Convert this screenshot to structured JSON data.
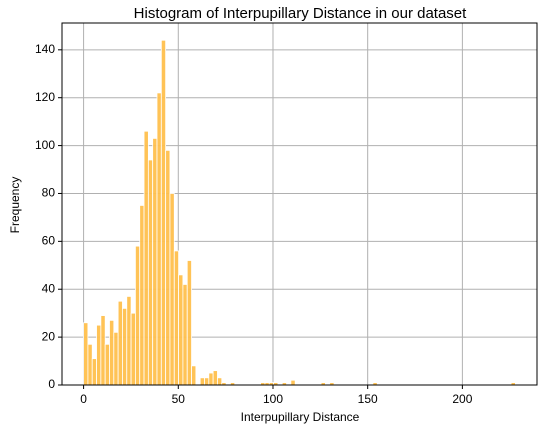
{
  "chart_data": {
    "type": "histogram",
    "title": "Histogram of Interpupillary Distance in our dataset",
    "xlabel": "Interpupillary Distance",
    "ylabel": "Frequency",
    "color": "#ffc04d",
    "grid": true,
    "bins": [
      0,
      2.28,
      4.56,
      6.84,
      9.12,
      11.4,
      13.68,
      15.96,
      18.24,
      20.52,
      22.8,
      25.08,
      27.36,
      29.64,
      31.92,
      34.2,
      36.48,
      38.76,
      41.04,
      43.32,
      45.6,
      47.88,
      50.16,
      52.44,
      54.72,
      57,
      59.28,
      61.56,
      63.84,
      66.12,
      68.4,
      70.68,
      72.96,
      75.24,
      77.52,
      79.8,
      82.08,
      84.36,
      86.64,
      88.92,
      91.2,
      93.48,
      95.76,
      98.04,
      100.32,
      102.6,
      104.88,
      107.16,
      109.44,
      111.72,
      114,
      116.28,
      118.56,
      120.84,
      123.12,
      125.4,
      127.68,
      129.96,
      132.24,
      134.52,
      136.8,
      139.08,
      141.36,
      143.64,
      145.92,
      148.2,
      150.48,
      152.76,
      155.04,
      157.32,
      159.6,
      161.88,
      164.16,
      166.44,
      168.72,
      171,
      173.28,
      175.56,
      177.84,
      180.12,
      182.4,
      184.68,
      186.96,
      189.24,
      191.52,
      193.8,
      196.08,
      198.36,
      200.64,
      202.92,
      205.2,
      207.48,
      209.76,
      212.04,
      214.32,
      216.6,
      218.88,
      221.16,
      223.44,
      225.72,
      228
    ],
    "values": [
      26,
      17,
      11,
      25,
      29,
      17,
      27,
      22,
      35,
      32,
      37,
      30,
      58,
      75,
      106,
      94,
      103,
      122,
      144,
      98,
      80,
      56,
      46,
      42,
      52,
      8,
      0,
      3,
      3,
      5,
      6,
      3,
      1,
      0,
      1,
      0,
      0,
      0,
      0,
      0,
      0,
      1,
      1,
      1,
      1,
      0,
      1,
      0,
      2,
      0,
      0,
      0,
      0,
      0,
      0,
      1,
      0,
      1,
      0,
      0,
      0,
      0,
      0,
      0,
      0,
      0,
      0,
      1,
      0,
      0,
      0,
      0,
      0,
      0,
      0,
      0,
      0,
      0,
      0,
      0,
      0,
      0,
      0,
      0,
      0,
      0,
      0,
      0,
      0,
      0,
      0,
      0,
      0,
      0,
      0,
      0,
      0,
      0,
      0,
      1
    ],
    "xlim": [
      -11.4,
      239.4
    ],
    "ylim": [
      0,
      151.2
    ],
    "xticks": [
      0,
      50,
      100,
      150,
      200
    ],
    "yticks": [
      0,
      20,
      40,
      60,
      80,
      100,
      120,
      140
    ]
  }
}
